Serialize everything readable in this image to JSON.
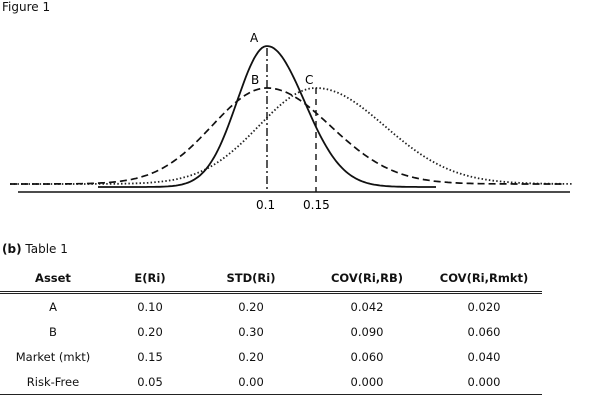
{
  "figure": {
    "title": "Figure 1",
    "curve_labels": [
      "A",
      "B",
      "C"
    ],
    "x_ticks": [
      "0.1",
      "0.15"
    ],
    "chart_data": {
      "type": "line",
      "title": "",
      "xlabel": "",
      "ylabel": "",
      "series": [
        {
          "name": "A",
          "mean": 0.1,
          "std": 0.2,
          "style": "solid"
        },
        {
          "name": "B",
          "mean": 0.1,
          "std": 0.3,
          "style": "dashed"
        },
        {
          "name": "C",
          "mean": 0.15,
          "std": 0.3,
          "style": "dotted"
        }
      ]
    }
  },
  "table": {
    "caption_prefix": "(b)",
    "caption": "Table 1",
    "headers": [
      "Asset",
      "E(Ri)",
      "STD(Ri)",
      "COV(Ri,RB)",
      "COV(Ri,Rmkt)"
    ],
    "rows": [
      [
        "A",
        "0.10",
        "0.20",
        "0.042",
        "0.020"
      ],
      [
        "B",
        "0.20",
        "0.30",
        "0.090",
        "0.060"
      ],
      [
        "Market (mkt)",
        "0.15",
        "0.20",
        "0.060",
        "0.040"
      ],
      [
        "Risk-Free",
        "0.05",
        "0.00",
        "0.000",
        "0.000"
      ]
    ]
  }
}
